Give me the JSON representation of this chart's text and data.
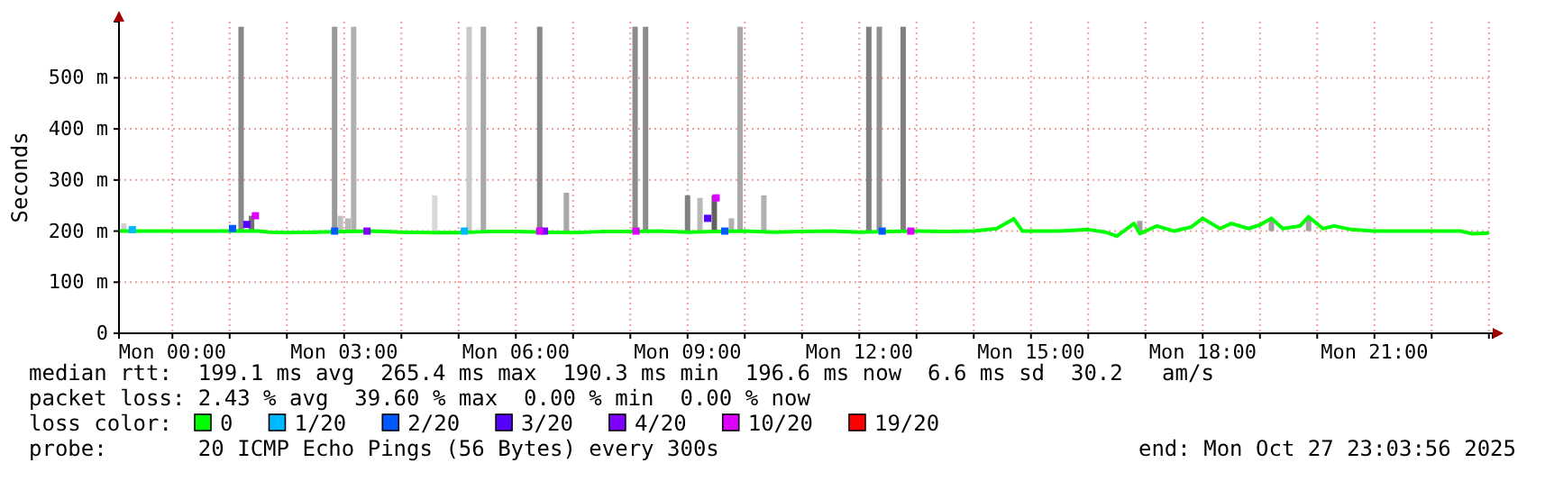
{
  "chart_data": {
    "type": "line",
    "ylabel": "Seconds",
    "legend_title": "loss color:",
    "legend": "bottom",
    "grid": true,
    "xlim": [
      "2025-10-26T23:04",
      "2025-10-27T23:04"
    ],
    "xticks": [
      {
        "value": "2025-10-27T00:00",
        "label": "Mon 00:00"
      },
      {
        "value": "2025-10-27T01:00",
        "label": null
      },
      {
        "value": "2025-10-27T02:00",
        "label": null
      },
      {
        "value": "2025-10-27T03:00",
        "label": "Mon 03:00"
      },
      {
        "value": "2025-10-27T04:00",
        "label": null
      },
      {
        "value": "2025-10-27T05:00",
        "label": null
      },
      {
        "value": "2025-10-27T06:00",
        "label": "Mon 06:00"
      },
      {
        "value": "2025-10-27T07:00",
        "label": null
      },
      {
        "value": "2025-10-27T08:00",
        "label": null
      },
      {
        "value": "2025-10-27T09:00",
        "label": "Mon 09:00"
      },
      {
        "value": "2025-10-27T10:00",
        "label": null
      },
      {
        "value": "2025-10-27T11:00",
        "label": null
      },
      {
        "value": "2025-10-27T12:00",
        "label": "Mon 12:00"
      },
      {
        "value": "2025-10-27T13:00",
        "label": null
      },
      {
        "value": "2025-10-27T14:00",
        "label": null
      },
      {
        "value": "2025-10-27T15:00",
        "label": "Mon 15:00"
      },
      {
        "value": "2025-10-27T16:00",
        "label": null
      },
      {
        "value": "2025-10-27T17:00",
        "label": null
      },
      {
        "value": "2025-10-27T18:00",
        "label": "Mon 18:00"
      },
      {
        "value": "2025-10-27T19:00",
        "label": null
      },
      {
        "value": "2025-10-27T20:00",
        "label": null
      },
      {
        "value": "2025-10-27T21:00",
        "label": "Mon 21:00"
      },
      {
        "value": "2025-10-27T22:00",
        "label": null
      },
      {
        "value": "2025-10-27T23:00",
        "label": null
      }
    ],
    "ylim": [
      0,
      610
    ],
    "yticks": [
      0,
      {
        "value": 100,
        "label": "100 m"
      },
      {
        "value": 200,
        "label": "200 m"
      },
      {
        "value": 300,
        "label": "300 m"
      },
      {
        "value": 400,
        "label": "400 m"
      },
      {
        "value": 500,
        "label": "500 m"
      }
    ],
    "series": [
      {
        "type": "bar",
        "x": [
          "2025-10-26T23:09",
          "2025-10-27T01:12",
          "2025-10-27T01:23",
          "2025-10-27T02:50",
          "2025-10-27T02:56",
          "2025-10-27T03:04",
          "2025-10-27T03:10",
          "2025-10-27T04:35",
          "2025-10-27T05:11",
          "2025-10-27T05:26",
          "2025-10-27T06:25",
          "2025-10-27T06:53",
          "2025-10-27T08:05",
          "2025-10-27T08:16",
          "2025-10-27T09:00",
          "2025-10-27T09:13",
          "2025-10-27T09:28",
          "2025-10-27T09:46",
          "2025-10-27T09:55",
          "2025-10-27T10:20",
          "2025-10-27T12:10",
          "2025-10-27T12:21",
          "2025-10-27T12:46",
          "2025-10-27T16:54",
          "2025-10-27T19:12",
          "2025-10-27T19:51"
        ],
        "base": [
          200,
          200,
          200,
          200,
          200,
          200,
          200,
          200,
          200,
          200,
          200,
          200,
          200,
          200,
          200,
          200,
          200,
          200,
          200,
          200,
          200,
          200,
          200,
          200,
          200,
          200
        ],
        "values": [
          15,
          400,
          30,
          400,
          30,
          25,
          400,
          70,
          400,
          400,
          400,
          75,
          400,
          400,
          70,
          65,
          70,
          25,
          400,
          70,
          400,
          400,
          400,
          20,
          25,
          25
        ],
        "colors": [
          "#d0d0d0",
          "#888888",
          "#707070",
          "#999999",
          "#c0c0c0",
          "#b8b8b8",
          "#b0b0b0",
          "#d8d8d8",
          "#c8c8c8",
          "#a8a8a8",
          "#888888",
          "#a8a8a8",
          "#8c8c8c",
          "#8c8c8c",
          "#808080",
          "#b8b8b8",
          "#606060",
          "#b0b0b0",
          "#a8a8a8",
          "#b0b0b0",
          "#808080",
          "#909090",
          "#808080",
          "#a0a0a0",
          "#a0a0a0",
          "#a0a0a0"
        ]
      },
      {
        "name": "0",
        "color": "#00ff00",
        "x": [
          "2025-10-26T23:04",
          "2025-10-26T23:30",
          "2025-10-27T00:00",
          "2025-10-27T00:30",
          "2025-10-27T01:00",
          "2025-10-27T01:30",
          "2025-10-27T01:42",
          "2025-10-27T02:00",
          "2025-10-27T02:30",
          "2025-10-27T03:00",
          "2025-10-27T03:30",
          "2025-10-27T04:00",
          "2025-10-27T04:30",
          "2025-10-27T05:00",
          "2025-10-27T05:30",
          "2025-10-27T06:00",
          "2025-10-27T06:30",
          "2025-10-27T07:00",
          "2025-10-27T07:30",
          "2025-10-27T08:00",
          "2025-10-27T08:30",
          "2025-10-27T09:00",
          "2025-10-27T09:30",
          "2025-10-27T10:00",
          "2025-10-27T10:30",
          "2025-10-27T11:00",
          "2025-10-27T11:30",
          "2025-10-27T12:00",
          "2025-10-27T12:30",
          "2025-10-27T13:00",
          "2025-10-27T13:30",
          "2025-10-27T14:00",
          "2025-10-27T14:24",
          "2025-10-27T14:42",
          "2025-10-27T14:51",
          "2025-10-27T15:00",
          "2025-10-27T15:30",
          "2025-10-27T16:00",
          "2025-10-27T16:18",
          "2025-10-27T16:30",
          "2025-10-27T16:48",
          "2025-10-27T16:54",
          "2025-10-27T17:12",
          "2025-10-27T17:30",
          "2025-10-27T17:48",
          "2025-10-27T18:00",
          "2025-10-27T18:18",
          "2025-10-27T18:30",
          "2025-10-27T18:48",
          "2025-10-27T19:00",
          "2025-10-27T19:12",
          "2025-10-27T19:24",
          "2025-10-27T19:42",
          "2025-10-27T19:51",
          "2025-10-27T20:06",
          "2025-10-27T20:18",
          "2025-10-27T20:36",
          "2025-10-27T21:00",
          "2025-10-27T21:30",
          "2025-10-27T22:00",
          "2025-10-27T22:30",
          "2025-10-27T22:42",
          "2025-10-27T23:00"
        ],
        "values": [
          200,
          200,
          200,
          200,
          200,
          200,
          198,
          197,
          198,
          199,
          200,
          198,
          197,
          197,
          199,
          199,
          198,
          197,
          199,
          199,
          200,
          198,
          199,
          200,
          198,
          199,
          200,
          198,
          199,
          200,
          199,
          200,
          205,
          224,
          200,
          200,
          200,
          203,
          198,
          190,
          215,
          195,
          210,
          200,
          208,
          225,
          205,
          215,
          205,
          212,
          225,
          205,
          210,
          228,
          205,
          210,
          203,
          200,
          200,
          200,
          200,
          195,
          196
        ]
      },
      {
        "name": "1/20",
        "type": "scatter",
        "marker": "square",
        "color": "#00b8ff",
        "x": [
          "2025-10-26T23:18",
          "2025-10-27T05:06"
        ],
        "values": [
          203,
          200
        ]
      },
      {
        "name": "2/20",
        "type": "scatter",
        "marker": "square",
        "color": "#0059ff",
        "x": [
          "2025-10-27T01:03",
          "2025-10-27T02:50",
          "2025-10-27T09:39",
          "2025-10-27T12:24"
        ],
        "values": [
          205,
          200,
          200,
          200
        ]
      },
      {
        "name": "3/20",
        "type": "scatter",
        "marker": "square",
        "color": "#5500ff",
        "x": [
          "2025-10-27T01:18",
          "2025-10-27T09:21"
        ],
        "values": [
          213,
          225
        ]
      },
      {
        "name": "4/20",
        "type": "scatter",
        "marker": "square",
        "color": "#7e00ff",
        "x": [
          "2025-10-27T03:24",
          "2025-10-27T06:30"
        ],
        "values": [
          200,
          200
        ]
      },
      {
        "name": "10/20",
        "type": "scatter",
        "marker": "square",
        "color": "#dd00ff",
        "x": [
          "2025-10-27T01:27",
          "2025-10-27T06:25",
          "2025-10-27T08:06",
          "2025-10-27T09:30",
          "2025-10-27T12:54"
        ],
        "values": [
          230,
          200,
          200,
          265,
          200
        ]
      },
      {
        "name": "19/20",
        "type": "scatter",
        "color": "#ff0000"
      }
    ],
    "annotations": [
      "median rtt:  199.1 ms avg  265.4 ms max  190.3 ms min  196.6 ms now  6.6 ms sd  30.2   am/s",
      "packet loss: 2.43 % avg  39.60 % max  0.00 % min  0.00 % now",
      "probe:       20 ICMP Echo Pings (56 Bytes) every 300s",
      "end: Mon Oct 27 23:03:56 2025"
    ]
  }
}
